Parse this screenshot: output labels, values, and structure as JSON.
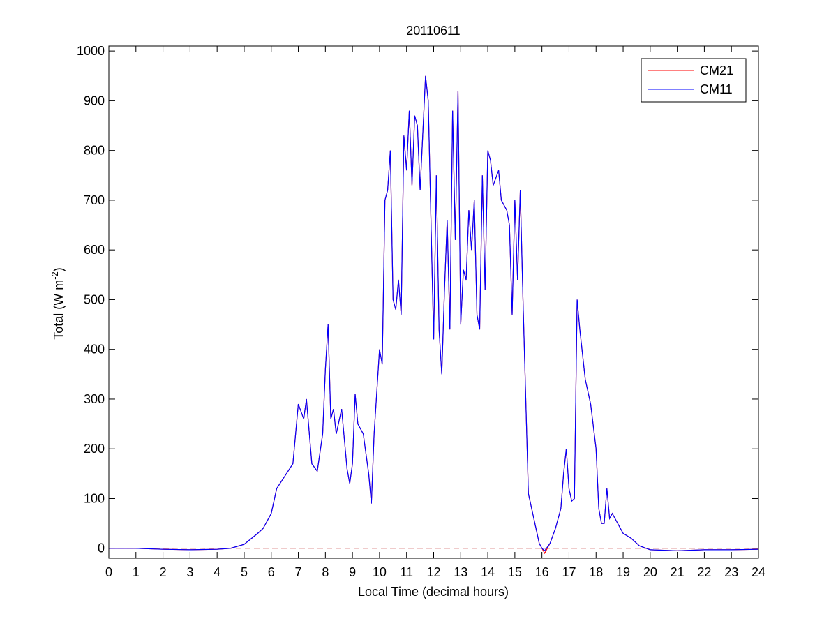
{
  "chart_data": {
    "type": "line",
    "title": "20110611",
    "xlabel": "Local Time (decimal hours)",
    "ylabel": {
      "text": "Total (W m",
      "superscript": "-2",
      "suffix": ")"
    },
    "x": [
      0,
      1,
      2,
      3,
      4,
      4.5,
      5,
      5.5,
      5.7,
      6,
      6.2,
      6.5,
      6.8,
      7,
      7.2,
      7.3,
      7.5,
      7.7,
      7.9,
      8,
      8.1,
      8.2,
      8.3,
      8.4,
      8.6,
      8.8,
      8.9,
      9,
      9.1,
      9.2,
      9.4,
      9.6,
      9.7,
      9.8,
      10,
      10.1,
      10.2,
      10.3,
      10.4,
      10.5,
      10.6,
      10.7,
      10.8,
      10.9,
      11,
      11.1,
      11.2,
      11.3,
      11.4,
      11.5,
      11.7,
      11.8,
      12,
      12.1,
      12.2,
      12.3,
      12.4,
      12.5,
      12.6,
      12.7,
      12.8,
      12.9,
      13,
      13.1,
      13.2,
      13.3,
      13.4,
      13.5,
      13.6,
      13.7,
      13.8,
      13.9,
      14,
      14.1,
      14.2,
      14.4,
      14.5,
      14.7,
      14.8,
      14.9,
      15,
      15.1,
      15.2,
      15.3,
      15.5,
      15.7,
      15.9,
      16,
      16.1,
      16.3,
      16.5,
      16.7,
      16.8,
      16.9,
      17,
      17.1,
      17.2,
      17.3,
      17.4,
      17.6,
      17.8,
      18,
      18.1,
      18.2,
      18.3,
      18.4,
      18.5,
      18.6,
      18.8,
      19,
      19.3,
      19.6,
      20,
      21,
      22,
      23,
      24
    ],
    "series": [
      {
        "name": "CM21",
        "color": "#ff0000",
        "values": [
          0,
          0,
          -2,
          -3,
          -2,
          0,
          8,
          30,
          40,
          70,
          120,
          145,
          170,
          290,
          260,
          300,
          170,
          155,
          230,
          360,
          450,
          260,
          280,
          230,
          280,
          160,
          130,
          170,
          310,
          250,
          230,
          150,
          90,
          230,
          400,
          370,
          700,
          720,
          800,
          500,
          480,
          540,
          470,
          830,
          760,
          880,
          730,
          870,
          850,
          720,
          950,
          900,
          420,
          750,
          440,
          350,
          520,
          660,
          440,
          880,
          620,
          920,
          450,
          560,
          540,
          680,
          600,
          700,
          470,
          440,
          750,
          520,
          800,
          780,
          730,
          760,
          700,
          680,
          650,
          470,
          700,
          540,
          720,
          500,
          110,
          60,
          10,
          0,
          -10,
          10,
          40,
          80,
          150,
          200,
          120,
          95,
          100,
          500,
          440,
          340,
          290,
          200,
          80,
          50,
          50,
          120,
          60,
          70,
          50,
          30,
          20,
          5,
          -3,
          -5,
          -3,
          -3,
          -2
        ]
      },
      {
        "name": "CM11",
        "color": "#0000ff",
        "values": [
          0,
          0,
          -2,
          -3,
          -2,
          0,
          8,
          30,
          40,
          70,
          120,
          145,
          170,
          290,
          260,
          300,
          170,
          155,
          230,
          360,
          450,
          260,
          280,
          230,
          280,
          160,
          130,
          170,
          310,
          250,
          230,
          150,
          90,
          230,
          400,
          370,
          700,
          720,
          800,
          500,
          480,
          540,
          470,
          830,
          760,
          880,
          730,
          870,
          850,
          720,
          950,
          900,
          420,
          750,
          440,
          350,
          520,
          660,
          440,
          880,
          620,
          920,
          450,
          560,
          540,
          680,
          600,
          700,
          470,
          440,
          750,
          520,
          800,
          780,
          730,
          760,
          700,
          680,
          650,
          470,
          700,
          540,
          720,
          500,
          110,
          60,
          10,
          0,
          -5,
          10,
          40,
          80,
          150,
          200,
          120,
          95,
          100,
          500,
          440,
          340,
          290,
          200,
          80,
          50,
          50,
          120,
          60,
          70,
          50,
          30,
          20,
          5,
          -3,
          -5,
          -3,
          -3,
          -2
        ]
      }
    ],
    "reference_line": {
      "value": 0,
      "color": "#c03030",
      "style": "dashed"
    },
    "xlim": [
      0,
      24
    ],
    "xticks": [
      0,
      1,
      2,
      3,
      4,
      5,
      6,
      7,
      8,
      9,
      10,
      11,
      12,
      13,
      14,
      15,
      16,
      17,
      18,
      19,
      20,
      21,
      22,
      23,
      24
    ],
    "ylim": [
      -20,
      1010
    ],
    "yticks": [
      0,
      100,
      200,
      300,
      400,
      500,
      600,
      700,
      800,
      900,
      1000
    ],
    "grid": false,
    "legend": "northeast"
  }
}
